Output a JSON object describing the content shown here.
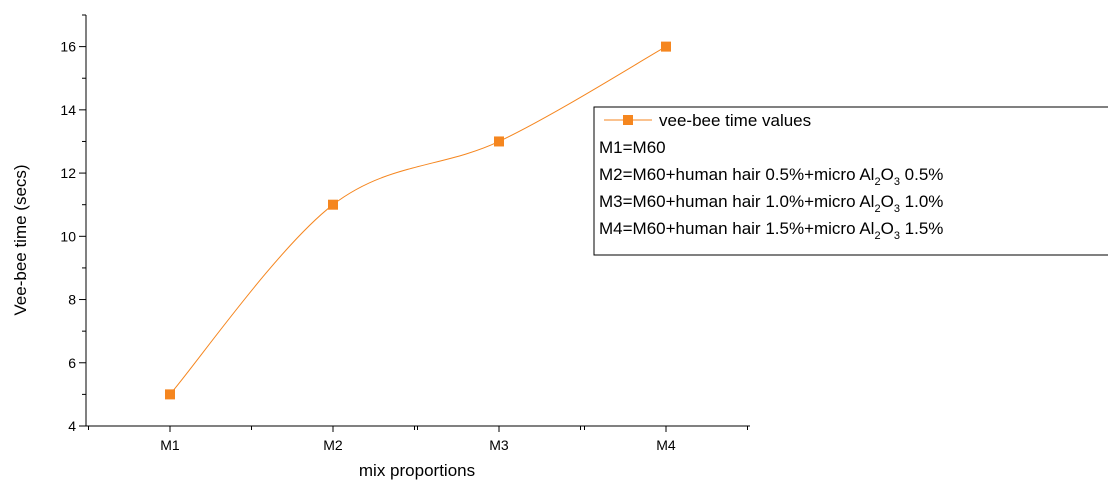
{
  "chart_data": {
    "type": "line",
    "categories": [
      "M1",
      "M2",
      "M3",
      "M4"
    ],
    "series": [
      {
        "name": "vee-bee time values",
        "values": [
          5,
          11,
          13,
          16
        ]
      }
    ],
    "xlabel": "mix proportions",
    "ylabel": "Vee-bee time (secs)",
    "ylim": [
      4,
      17
    ],
    "yticks": [
      4,
      6,
      8,
      10,
      12,
      14,
      16
    ],
    "grid": false,
    "smooth": true,
    "legend_position": "right",
    "legend_notes": [
      {
        "text": "M1=M60"
      },
      {
        "pre": "M2=M60+human hair 0.5%+micro Al",
        "s1": "2",
        "mid": "O",
        "s2": "3",
        "post": " 0.5%"
      },
      {
        "pre": "M3=M60+human hair 1.0%+micro Al",
        "s1": "2",
        "mid": "O",
        "s2": "3",
        "post": " 1.0%"
      },
      {
        "pre": "M4=M60+human hair 1.5%+micro Al",
        "s1": "2",
        "mid": "O",
        "s2": "3",
        "post": " 1.5%"
      }
    ],
    "colors": {
      "series": "#f5861f",
      "axis": "#000000"
    }
  }
}
